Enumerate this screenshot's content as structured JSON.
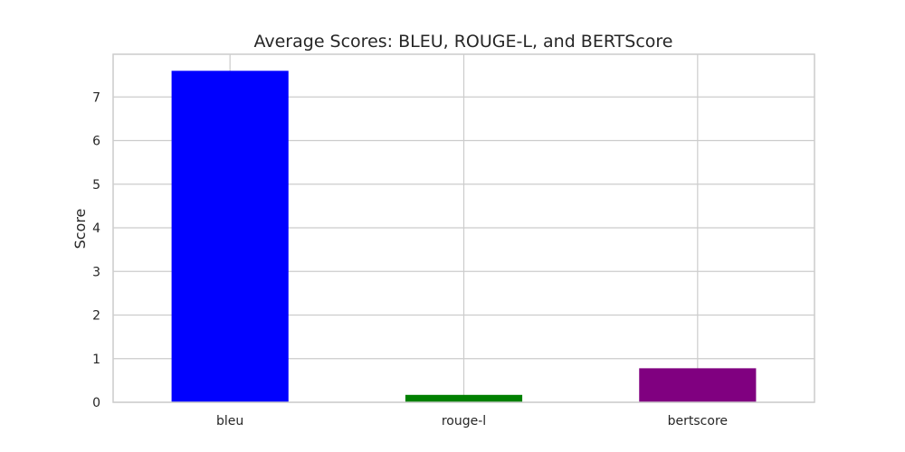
{
  "chart_data": {
    "type": "bar",
    "title": "Average Scores: BLEU, ROUGE-L, and BERTScore",
    "xlabel": "",
    "ylabel": "Score",
    "categories": [
      "bleu",
      "rouge-l",
      "bertscore"
    ],
    "values": [
      7.6,
      0.17,
      0.78
    ],
    "colors": [
      "#0000ff",
      "#008000",
      "#800080"
    ],
    "ylim": [
      0,
      7.98
    ],
    "yticks": [
      0,
      1,
      2,
      3,
      4,
      5,
      6,
      7
    ],
    "grid": true,
    "legend": "none"
  }
}
